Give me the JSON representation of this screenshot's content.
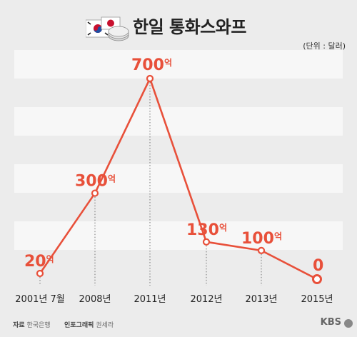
{
  "title": "한일 통화스와프",
  "unit_label": "(단위 : 달러)",
  "footer": {
    "source_label": "자료",
    "source_value": "한국은행",
    "credit_label": "인포그래픽",
    "credit_value": "권세라",
    "brand": "KBS"
  },
  "colors": {
    "line": "#e8503a",
    "band": "#f7f7f7",
    "background": "#ececec",
    "label": "#e8503a"
  },
  "chart_data": {
    "type": "line",
    "title": "한일 통화스와프",
    "categories": [
      "2001년 7월",
      "2008년",
      "2011년",
      "2012년",
      "2013년",
      "2015년"
    ],
    "series": [
      {
        "values": [
          20,
          300,
          700,
          130,
          100,
          0
        ]
      }
    ],
    "data_labels": [
      {
        "number": "20",
        "unit": "억"
      },
      {
        "number": "300",
        "unit": "억"
      },
      {
        "number": "700",
        "unit": "억"
      },
      {
        "number": "130",
        "unit": "억"
      },
      {
        "number": "100",
        "unit": "억"
      },
      {
        "number": "0",
        "unit": ""
      }
    ],
    "ylim": [
      0,
      750
    ],
    "grid": "alternating bands",
    "unit": "달러"
  }
}
